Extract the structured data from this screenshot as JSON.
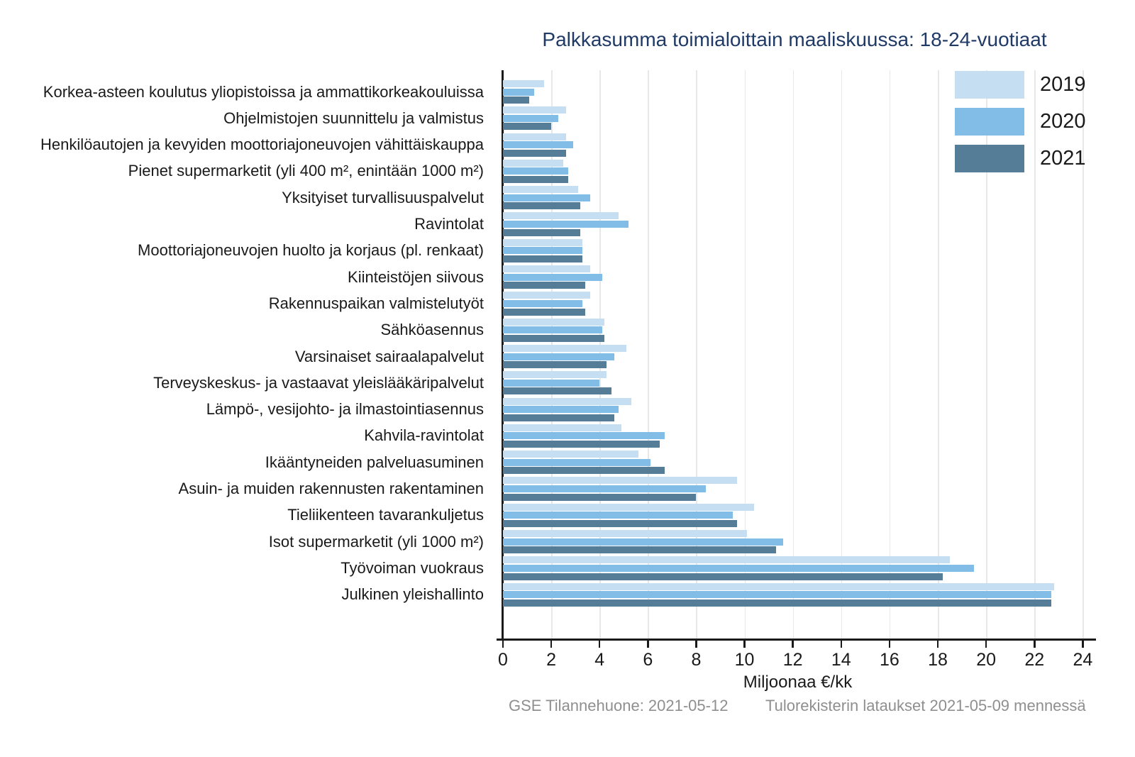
{
  "title": "Palkkasumma toimialoittain maaliskuussa: 18-24-vuotiaat",
  "footer": {
    "left": "GSE Tilannehuone: 2021-05-12",
    "right": "Tulorekisterin lataukset 2021-05-09 mennessä"
  },
  "colors": {
    "title": "#1f3a66",
    "axis": "#1a1a1a",
    "grid": "#e8e8e8",
    "footer": "#8f8f8f",
    "series_2019": "#c6def2",
    "series_2020": "#82bde8",
    "series_2021": "#567d97"
  },
  "chart_data": {
    "type": "bar",
    "orientation": "horizontal",
    "title": "Palkkasumma toimialoittain maaliskuussa: 18-24-vuotiaat",
    "xlabel": "Miljoonaa €/kk",
    "xlim": [
      0,
      24.4
    ],
    "xticks": [
      0,
      2,
      4,
      6,
      8,
      10,
      12,
      14,
      16,
      18,
      20,
      22,
      24
    ],
    "grid": true,
    "legend_position": "top-right",
    "categories": [
      "Korkea-asteen koulutus yliopistoissa ja ammattikorkeakouluissa",
      "Ohjelmistojen suunnittelu ja valmistus",
      "Henkilöautojen ja kevyiden moottoriajoneuvojen vähittäiskauppa",
      "Pienet supermarketit (yli 400 m², enintään 1000 m²)",
      "Yksityiset turvallisuuspalvelut",
      "Ravintolat",
      "Moottoriajoneuvojen huolto ja korjaus (pl. renkaat)",
      "Kiinteistöjen siivous",
      "Rakennuspaikan valmistelutyöt",
      "Sähköasennus",
      "Varsinaiset sairaalapalvelut",
      "Terveyskeskus- ja vastaavat yleislääkäripalvelut",
      "Lämpö-, vesijohto- ja ilmastointiasennus",
      "Kahvila-ravintolat",
      "Ikääntyneiden palveluasuminen",
      "Asuin- ja muiden rakennusten rakentaminen",
      "Tieliikenteen tavarankuljetus",
      "Isot supermarketit (yli 1000 m²)",
      "Työvoiman vuokraus",
      "Julkinen yleishallinto"
    ],
    "series": [
      {
        "name": "2019",
        "color": "#c6def2",
        "values": [
          1.7,
          2.6,
          2.6,
          2.5,
          3.1,
          4.8,
          3.3,
          3.6,
          3.6,
          4.2,
          5.1,
          4.3,
          5.3,
          4.9,
          5.6,
          9.7,
          10.4,
          10.1,
          18.5,
          22.8
        ]
      },
      {
        "name": "2020",
        "color": "#82bde8",
        "values": [
          1.3,
          2.3,
          2.9,
          2.7,
          3.6,
          5.2,
          3.3,
          4.1,
          3.3,
          4.1,
          4.6,
          4.0,
          4.8,
          6.7,
          6.1,
          8.4,
          9.5,
          11.6,
          19.5,
          22.7
        ]
      },
      {
        "name": "2021",
        "color": "#567d97",
        "values": [
          1.1,
          2.0,
          2.6,
          2.7,
          3.2,
          3.2,
          3.3,
          3.4,
          3.4,
          4.2,
          4.3,
          4.5,
          4.6,
          6.5,
          6.7,
          8.0,
          9.7,
          11.3,
          18.2,
          22.7
        ]
      }
    ]
  }
}
